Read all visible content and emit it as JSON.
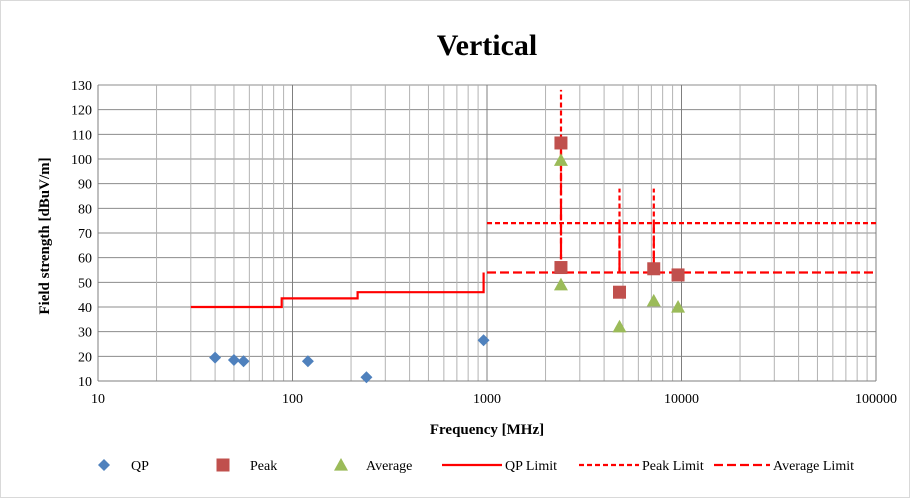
{
  "chart_data": {
    "type": "scatter",
    "title": "Vertical",
    "xlabel": "Frequency [MHz]",
    "ylabel": "Field strength [dBuV/m]",
    "x_scale": "log",
    "xlim": [
      10,
      100000
    ],
    "ylim": [
      10,
      130
    ],
    "x_ticks": [
      "10",
      "100",
      "1000",
      "10000",
      "100000"
    ],
    "y_ticks": [
      "10",
      "20",
      "30",
      "40",
      "50",
      "60",
      "70",
      "80",
      "90",
      "100",
      "110",
      "120",
      "130"
    ],
    "grid": true,
    "legend_position": "bottom",
    "series": [
      {
        "name": "QP",
        "kind": "marker",
        "marker": "diamond",
        "color": "#4f81bd",
        "points": [
          [
            40,
            19.5
          ],
          [
            50,
            18.5
          ],
          [
            56,
            18
          ],
          [
            120,
            18
          ],
          [
            240,
            11.5
          ],
          [
            960,
            26.5
          ]
        ]
      },
      {
        "name": "Peak",
        "kind": "marker",
        "marker": "square",
        "color": "#c0504d",
        "points": [
          [
            2400,
            106.5
          ],
          [
            2400,
            56
          ],
          [
            4800,
            46
          ],
          [
            7200,
            55.5
          ],
          [
            9600,
            53
          ]
        ]
      },
      {
        "name": "Average",
        "kind": "marker",
        "marker": "triangle",
        "color": "#9bbb59",
        "points": [
          [
            2400,
            99.5
          ],
          [
            2400,
            49
          ],
          [
            4800,
            32
          ],
          [
            7200,
            42.5
          ],
          [
            9600,
            40
          ]
        ]
      },
      {
        "name": "QP Limit",
        "kind": "line",
        "dash": "solid",
        "color": "#ff0000",
        "points": [
          [
            30,
            40
          ],
          [
            88,
            40
          ],
          [
            88,
            43.5
          ],
          [
            216,
            43.5
          ],
          [
            216,
            46
          ],
          [
            960,
            46
          ],
          [
            960,
            54
          ]
        ]
      },
      {
        "name": "Peak Limit",
        "kind": "line",
        "dash": "short",
        "color": "#ff0000",
        "segments": [
          [
            [
              1000,
              74
            ],
            [
              100000,
              74
            ]
          ],
          [
            [
              2400,
              56
            ],
            [
              2400,
              128
            ]
          ],
          [
            [
              4800,
              54
            ],
            [
              4800,
              88
            ]
          ],
          [
            [
              7200,
              54
            ],
            [
              7200,
              88
            ]
          ]
        ]
      },
      {
        "name": "Average Limit",
        "kind": "line",
        "dash": "long",
        "color": "#ff0000",
        "segments": [
          [
            [
              1000,
              54
            ],
            [
              100000,
              54
            ]
          ],
          [
            [
              2400,
              54
            ],
            [
              2400,
              106
            ]
          ],
          [
            [
              4800,
              54
            ],
            [
              4800,
              74
            ]
          ],
          [
            [
              7200,
              54
            ],
            [
              7200,
              74
            ]
          ]
        ]
      }
    ]
  }
}
